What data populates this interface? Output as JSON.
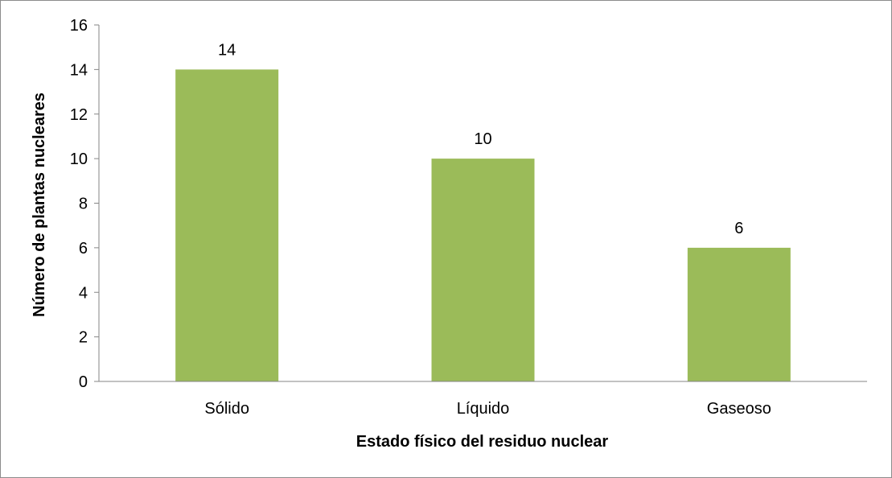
{
  "chart_data": {
    "type": "bar",
    "title": "",
    "categories": [
      "Sólido",
      "Líquido",
      "Gaseoso"
    ],
    "values": [
      14,
      10,
      6
    ],
    "data_labels": [
      "14",
      "10",
      "6"
    ],
    "xlabel": "Estado físico del residuo nuclear",
    "ylabel": "Número de plantas nucleares",
    "ylim": [
      0,
      16
    ],
    "yticks": [
      0,
      2,
      4,
      6,
      8,
      10,
      12,
      14,
      16
    ],
    "ytick_labels": [
      "0",
      "2",
      "4",
      "6",
      "8",
      "10",
      "12",
      "14",
      "16"
    ],
    "grid": false,
    "legend": "none",
    "bar_color": "#9BBB59",
    "axis_color": "#868686"
  }
}
